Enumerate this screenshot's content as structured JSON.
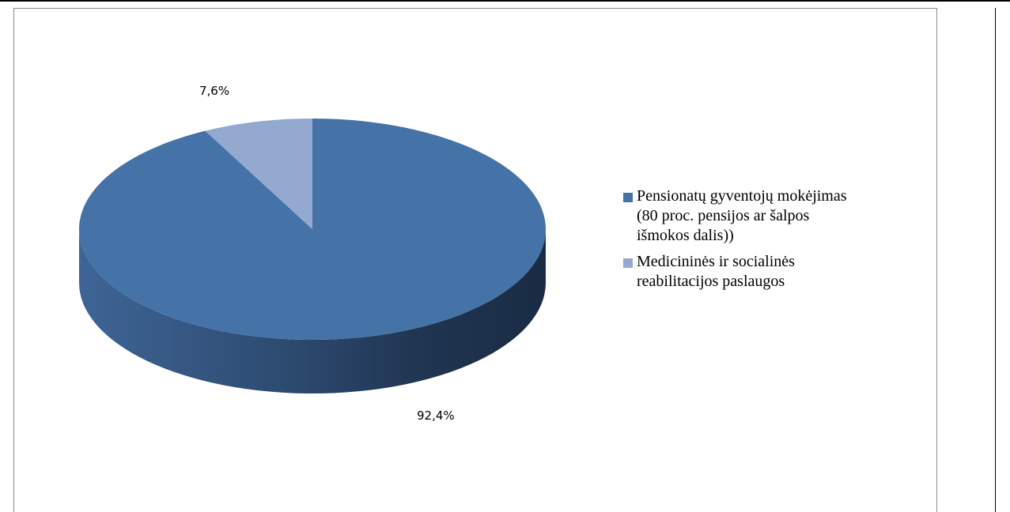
{
  "chart_data": {
    "type": "pie",
    "style": "3d",
    "title": "",
    "slices": [
      {
        "label": "Pensionatų gyventojų mokėjimas (80 proc. pensijos ar šalpos išmokos dalis))",
        "value": 92.4,
        "value_label": "92,4%",
        "color": "#4572A7"
      },
      {
        "label": "Medicininės ir socialinės reabilitacijos paslaugos",
        "value": 7.6,
        "value_label": "7,6%",
        "color": "#93A9CF"
      }
    ],
    "legend": {
      "position": "right",
      "items": [
        {
          "label_lines": [
            "Pensionatų gyventojų mokėjimas",
            "(80 proc. pensijos ar šalpos",
            "išmokos dalis))"
          ],
          "color": "#4572A7"
        },
        {
          "label_lines": [
            "Medicininės ir socialinės",
            "reabilitacijos paslaugos"
          ],
          "color": "#93A9CF"
        }
      ]
    }
  }
}
